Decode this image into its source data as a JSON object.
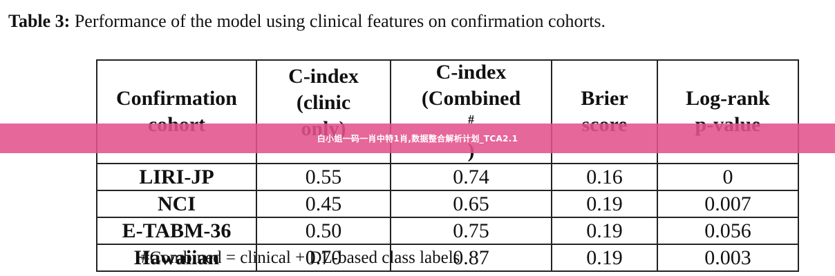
{
  "caption": {
    "label": "Table 3:",
    "text": " Performance of the model using clinical features on confirmation cohorts."
  },
  "table": {
    "headers": [
      {
        "lines": [
          "Confirmation",
          "cohort"
        ]
      },
      {
        "lines": [
          "C-index",
          "(clinic",
          "only)"
        ]
      },
      {
        "lines": [
          "C-index",
          "(Combined",
          ")"
        ],
        "sup": "#"
      },
      {
        "lines": [
          "Brier",
          "score"
        ]
      },
      {
        "lines": [
          "Log-rank",
          "p-value"
        ]
      }
    ],
    "rows": [
      {
        "cohort": "LIRI-JP",
        "clinic": "0.55",
        "combined": "0.74",
        "brier": "0.16",
        "logrank": "0"
      },
      {
        "cohort": "NCI",
        "clinic": "0.45",
        "combined": "0.65",
        "brier": "0.19",
        "logrank": "0.007"
      },
      {
        "cohort": "E-TABM-36",
        "clinic": "0.50",
        "combined": "0.75",
        "brier": "0.19",
        "logrank": "0.056"
      },
      {
        "cohort": "Hawaiian",
        "clinic": "0.70",
        "combined": "0.87",
        "brier": "0.19",
        "logrank": "0.003"
      }
    ]
  },
  "footnote": "#Combined = clinical + DL-based class labels",
  "overlay_banner": {
    "text": "白小姐一码一肖中特1肖,数据整合解析计划_TCA2.1",
    "color": "#e2528c"
  }
}
